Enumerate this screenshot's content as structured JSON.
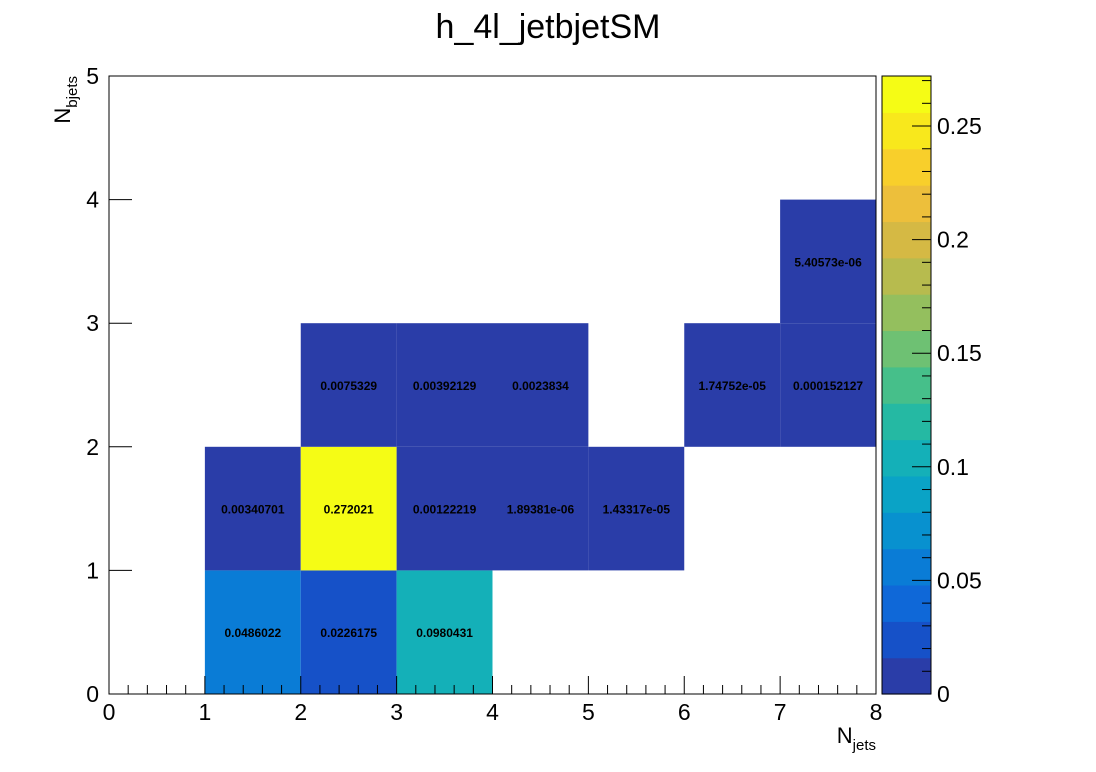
{
  "chart_data": {
    "type": "heatmap",
    "title": "h_4l_jetbjetSM",
    "xlabel": {
      "main": "N",
      "sub": "jets"
    },
    "ylabel": {
      "main": "N",
      "sub": "bjets"
    },
    "xlim": [
      0,
      8
    ],
    "ylim": [
      0,
      5
    ],
    "x_ticks": [
      "0",
      "1",
      "2",
      "3",
      "4",
      "5",
      "6",
      "7",
      "8"
    ],
    "y_ticks": [
      "0",
      "1",
      "2",
      "3",
      "4",
      "5"
    ],
    "colorbar": {
      "range": [
        0,
        0.272021
      ],
      "ticks": [
        {
          "value": 0,
          "label": "0"
        },
        {
          "value": 0.05,
          "label": "0.05"
        },
        {
          "value": 0.1,
          "label": "0.1"
        },
        {
          "value": 0.15,
          "label": "0.15"
        },
        {
          "value": 0.2,
          "label": "0.2"
        },
        {
          "value": 0.25,
          "label": "0.25"
        }
      ],
      "palette": [
        "#2a3da8",
        "#1651c8",
        "#0f68d8",
        "#0a7cd6",
        "#0891cf",
        "#0aa3c6",
        "#14b0b8",
        "#25b9a3",
        "#46bf8a",
        "#6ec173",
        "#94bf5e",
        "#b7bb4e",
        "#d5b944",
        "#edbf3b",
        "#f8cf2b",
        "#f8e81c",
        "#f5fc15"
      ]
    },
    "cells": [
      {
        "x": 1,
        "y": 0,
        "value": 0.0486022,
        "label": "0.0486022"
      },
      {
        "x": 2,
        "y": 0,
        "value": 0.0226175,
        "label": "0.0226175"
      },
      {
        "x": 3,
        "y": 0,
        "value": 0.0980431,
        "label": "0.0980431"
      },
      {
        "x": 1,
        "y": 1,
        "value": 0.00340701,
        "label": "0.00340701"
      },
      {
        "x": 2,
        "y": 1,
        "value": 0.272021,
        "label": "0.272021"
      },
      {
        "x": 3,
        "y": 1,
        "value": 0.00122219,
        "label": "0.00122219"
      },
      {
        "x": 4,
        "y": 1,
        "value": 1.89381e-06,
        "label": "1.89381e-06"
      },
      {
        "x": 5,
        "y": 1,
        "value": 1.43317e-05,
        "label": "1.43317e-05"
      },
      {
        "x": 2,
        "y": 2,
        "value": 0.0075329,
        "label": "0.0075329"
      },
      {
        "x": 3,
        "y": 2,
        "value": 0.00392129,
        "label": "0.00392129"
      },
      {
        "x": 4,
        "y": 2,
        "value": 0.0023834,
        "label": "0.0023834"
      },
      {
        "x": 6,
        "y": 2,
        "value": 1.74752e-05,
        "label": "1.74752e-05"
      },
      {
        "x": 7,
        "y": 2,
        "value": 0.000152127,
        "label": "0.000152127"
      },
      {
        "x": 7,
        "y": 3,
        "value": 5.40573e-06,
        "label": "5.40573e-06"
      }
    ]
  }
}
